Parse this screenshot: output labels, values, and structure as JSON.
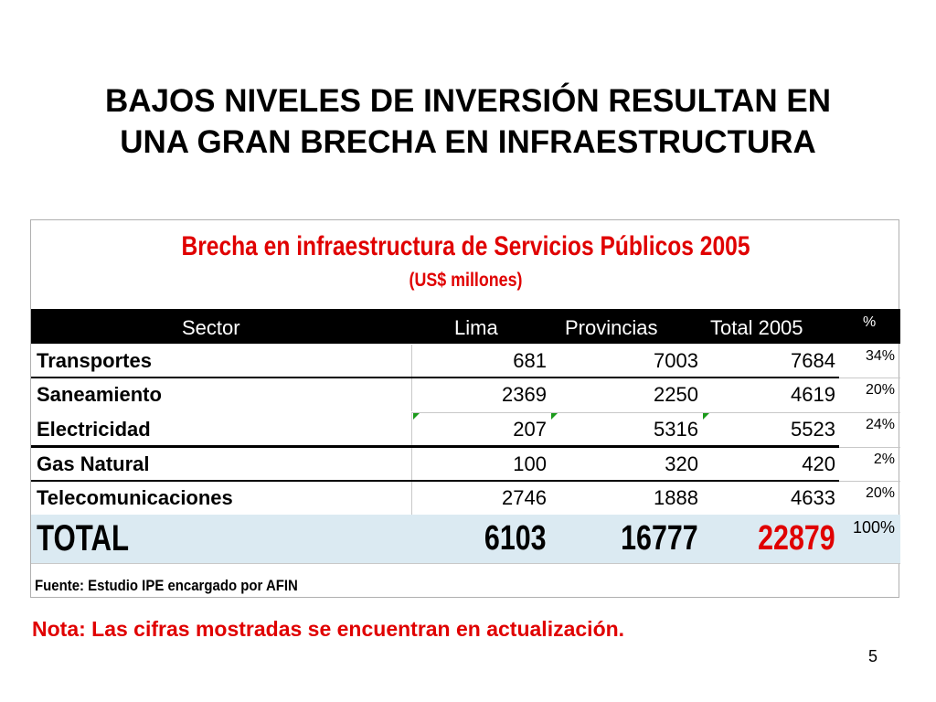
{
  "slide": {
    "title_line1": "BAJOS NIVELES DE INVERSIÓN RESULTAN EN",
    "title_line2": "UNA GRAN BRECHA EN INFRAESTRUCTURA",
    "note": "Nota: Las cifras mostradas se encuentran en actualización.",
    "page_number": "5"
  },
  "table": {
    "title": "Brecha en infraestructura de Servicios Públicos 2005",
    "subtitle": "(US$ millones)",
    "headers": {
      "sector": "Sector",
      "lima": "Lima",
      "provincias": "Provincias",
      "total": "Total 2005",
      "pct": "%"
    },
    "rows": [
      {
        "sector": "Transportes",
        "lima": "681",
        "provincias": "7003",
        "total": "7684",
        "pct": "34%"
      },
      {
        "sector": "Saneamiento",
        "lima": "2369",
        "provincias": "2250",
        "total": "4619",
        "pct": "20%"
      },
      {
        "sector": "Electricidad",
        "lima": "207",
        "provincias": "5316",
        "total": "5523",
        "pct": "24%"
      },
      {
        "sector": "Gas Natural",
        "lima": "100",
        "provincias": "320",
        "total": "420",
        "pct": "2%"
      },
      {
        "sector": "Telecomunicaciones",
        "lima": "2746",
        "provincias": "1888",
        "total": "4633",
        "pct": "20%"
      }
    ],
    "total": {
      "label": "TOTAL",
      "lima": "6103",
      "provincias": "16777",
      "total": "22879",
      "pct": "100%"
    },
    "source": "Fuente: Estudio IPE encargado por AFIN"
  }
}
